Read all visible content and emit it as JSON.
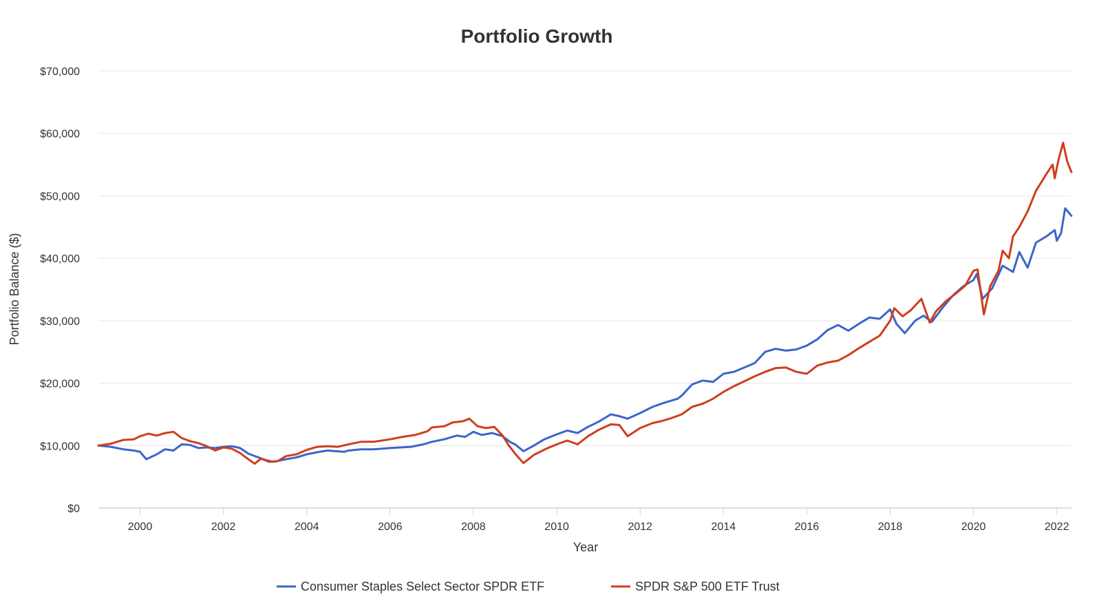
{
  "chart_data": {
    "type": "line",
    "title": "Portfolio Growth",
    "xlabel": "Year",
    "ylabel": "Portfolio Balance ($)",
    "xlim": [
      1999.0,
      2022.35
    ],
    "ylim": [
      0,
      70000
    ],
    "x_ticks": [
      2000,
      2002,
      2004,
      2006,
      2008,
      2010,
      2012,
      2014,
      2016,
      2018,
      2020,
      2022
    ],
    "x_tick_labels": [
      "2000",
      "2002",
      "2004",
      "2006",
      "2008",
      "2010",
      "2012",
      "2014",
      "2016",
      "2018",
      "2020",
      "2022"
    ],
    "y_ticks": [
      0,
      10000,
      20000,
      30000,
      40000,
      50000,
      60000,
      70000
    ],
    "y_tick_labels": [
      "$0",
      "$10,000",
      "$20,000",
      "$30,000",
      "$40,000",
      "$50,000",
      "$60,000",
      "$70,000"
    ],
    "grid": "horizontal",
    "legend_position": "bottom",
    "series": [
      {
        "name": "Consumer Staples Select Sector SPDR ETF",
        "color": "#3a65c9",
        "points": [
          [
            1999.0,
            10000
          ],
          [
            1999.3,
            9800
          ],
          [
            1999.6,
            9400
          ],
          [
            1999.85,
            9200
          ],
          [
            2000.0,
            9000
          ],
          [
            2000.15,
            7800
          ],
          [
            2000.4,
            8600
          ],
          [
            2000.6,
            9400
          ],
          [
            2000.8,
            9200
          ],
          [
            2001.0,
            10200
          ],
          [
            2001.2,
            10100
          ],
          [
            2001.4,
            9600
          ],
          [
            2001.6,
            9700
          ],
          [
            2001.8,
            9600
          ],
          [
            2002.0,
            9800
          ],
          [
            2002.2,
            9900
          ],
          [
            2002.4,
            9600
          ],
          [
            2002.6,
            8700
          ],
          [
            2002.8,
            8200
          ],
          [
            2003.0,
            7700
          ],
          [
            2003.2,
            7400
          ],
          [
            2003.5,
            7800
          ],
          [
            2003.75,
            8100
          ],
          [
            2004.0,
            8600
          ],
          [
            2004.3,
            9000
          ],
          [
            2004.5,
            9200
          ],
          [
            2004.7,
            9100
          ],
          [
            2004.9,
            9000
          ],
          [
            2005.0,
            9200
          ],
          [
            2005.3,
            9400
          ],
          [
            2005.6,
            9400
          ],
          [
            2006.0,
            9600
          ],
          [
            2006.5,
            9800
          ],
          [
            2006.8,
            10200
          ],
          [
            2007.0,
            10600
          ],
          [
            2007.3,
            11000
          ],
          [
            2007.6,
            11600
          ],
          [
            2007.8,
            11400
          ],
          [
            2008.0,
            12200
          ],
          [
            2008.2,
            11700
          ],
          [
            2008.45,
            12000
          ],
          [
            2008.7,
            11500
          ],
          [
            2008.9,
            10500
          ],
          [
            2009.0,
            10200
          ],
          [
            2009.2,
            9100
          ],
          [
            2009.45,
            10000
          ],
          [
            2009.7,
            11000
          ],
          [
            2010.0,
            11800
          ],
          [
            2010.25,
            12400
          ],
          [
            2010.5,
            12000
          ],
          [
            2010.75,
            13000
          ],
          [
            2011.0,
            13800
          ],
          [
            2011.3,
            15000
          ],
          [
            2011.5,
            14700
          ],
          [
            2011.7,
            14300
          ],
          [
            2012.0,
            15200
          ],
          [
            2012.3,
            16200
          ],
          [
            2012.6,
            16900
          ],
          [
            2012.9,
            17500
          ],
          [
            2013.0,
            18000
          ],
          [
            2013.25,
            19800
          ],
          [
            2013.5,
            20400
          ],
          [
            2013.75,
            20200
          ],
          [
            2014.0,
            21500
          ],
          [
            2014.25,
            21800
          ],
          [
            2014.5,
            22500
          ],
          [
            2014.75,
            23200
          ],
          [
            2015.0,
            25000
          ],
          [
            2015.25,
            25500
          ],
          [
            2015.5,
            25200
          ],
          [
            2015.75,
            25400
          ],
          [
            2016.0,
            26000
          ],
          [
            2016.25,
            27000
          ],
          [
            2016.5,
            28500
          ],
          [
            2016.75,
            29300
          ],
          [
            2017.0,
            28400
          ],
          [
            2017.25,
            29500
          ],
          [
            2017.5,
            30500
          ],
          [
            2017.75,
            30300
          ],
          [
            2018.0,
            31800
          ],
          [
            2018.15,
            29500
          ],
          [
            2018.35,
            28000
          ],
          [
            2018.6,
            30000
          ],
          [
            2018.8,
            30800
          ],
          [
            2019.0,
            29800
          ],
          [
            2019.25,
            32000
          ],
          [
            2019.5,
            34000
          ],
          [
            2019.75,
            35500
          ],
          [
            2020.0,
            36500
          ],
          [
            2020.08,
            37500
          ],
          [
            2020.22,
            33500
          ],
          [
            2020.45,
            35200
          ],
          [
            2020.7,
            38800
          ],
          [
            2020.95,
            37800
          ],
          [
            2021.1,
            41000
          ],
          [
            2021.3,
            38500
          ],
          [
            2021.5,
            42500
          ],
          [
            2021.75,
            43500
          ],
          [
            2021.95,
            44500
          ],
          [
            2022.0,
            42800
          ],
          [
            2022.1,
            44000
          ],
          [
            2022.2,
            48000
          ],
          [
            2022.35,
            46800
          ]
        ]
      },
      {
        "name": "SPDR S&P 500 ETF Trust",
        "color": "#cf3d1c",
        "points": [
          [
            1999.0,
            10000
          ],
          [
            1999.3,
            10300
          ],
          [
            1999.6,
            10900
          ],
          [
            1999.85,
            11000
          ],
          [
            2000.0,
            11500
          ],
          [
            2000.2,
            11900
          ],
          [
            2000.4,
            11600
          ],
          [
            2000.6,
            12000
          ],
          [
            2000.8,
            12200
          ],
          [
            2001.0,
            11200
          ],
          [
            2001.2,
            10700
          ],
          [
            2001.4,
            10400
          ],
          [
            2001.6,
            9900
          ],
          [
            2001.8,
            9200
          ],
          [
            2002.0,
            9700
          ],
          [
            2002.2,
            9500
          ],
          [
            2002.4,
            8800
          ],
          [
            2002.6,
            7800
          ],
          [
            2002.75,
            7100
          ],
          [
            2002.9,
            7900
          ],
          [
            2003.1,
            7400
          ],
          [
            2003.3,
            7500
          ],
          [
            2003.5,
            8300
          ],
          [
            2003.75,
            8600
          ],
          [
            2004.0,
            9300
          ],
          [
            2004.25,
            9800
          ],
          [
            2004.5,
            9900
          ],
          [
            2004.75,
            9800
          ],
          [
            2005.0,
            10200
          ],
          [
            2005.3,
            10600
          ],
          [
            2005.6,
            10600
          ],
          [
            2005.9,
            10900
          ],
          [
            2006.0,
            11000
          ],
          [
            2006.3,
            11400
          ],
          [
            2006.6,
            11700
          ],
          [
            2006.9,
            12300
          ],
          [
            2007.0,
            12900
          ],
          [
            2007.3,
            13100
          ],
          [
            2007.5,
            13700
          ],
          [
            2007.75,
            13900
          ],
          [
            2007.9,
            14300
          ],
          [
            2008.1,
            13100
          ],
          [
            2008.3,
            12800
          ],
          [
            2008.5,
            13000
          ],
          [
            2008.7,
            11600
          ],
          [
            2008.85,
            10000
          ],
          [
            2009.0,
            8700
          ],
          [
            2009.2,
            7200
          ],
          [
            2009.45,
            8500
          ],
          [
            2009.75,
            9500
          ],
          [
            2010.0,
            10200
          ],
          [
            2010.25,
            10800
          ],
          [
            2010.5,
            10200
          ],
          [
            2010.75,
            11500
          ],
          [
            2011.0,
            12500
          ],
          [
            2011.3,
            13400
          ],
          [
            2011.5,
            13300
          ],
          [
            2011.7,
            11500
          ],
          [
            2012.0,
            12800
          ],
          [
            2012.3,
            13600
          ],
          [
            2012.5,
            13900
          ],
          [
            2012.75,
            14400
          ],
          [
            2013.0,
            15000
          ],
          [
            2013.25,
            16200
          ],
          [
            2013.5,
            16700
          ],
          [
            2013.75,
            17500
          ],
          [
            2014.0,
            18600
          ],
          [
            2014.25,
            19500
          ],
          [
            2014.5,
            20300
          ],
          [
            2014.75,
            21100
          ],
          [
            2015.0,
            21800
          ],
          [
            2015.25,
            22400
          ],
          [
            2015.5,
            22500
          ],
          [
            2015.75,
            21800
          ],
          [
            2016.0,
            21500
          ],
          [
            2016.25,
            22800
          ],
          [
            2016.5,
            23300
          ],
          [
            2016.75,
            23600
          ],
          [
            2017.0,
            24500
          ],
          [
            2017.25,
            25600
          ],
          [
            2017.5,
            26600
          ],
          [
            2017.75,
            27600
          ],
          [
            2018.0,
            30000
          ],
          [
            2018.1,
            32000
          ],
          [
            2018.3,
            30700
          ],
          [
            2018.5,
            31700
          ],
          [
            2018.75,
            33500
          ],
          [
            2018.95,
            29700
          ],
          [
            2019.1,
            31500
          ],
          [
            2019.35,
            33200
          ],
          [
            2019.55,
            34200
          ],
          [
            2019.8,
            35600
          ],
          [
            2020.0,
            38000
          ],
          [
            2020.1,
            38200
          ],
          [
            2020.25,
            31000
          ],
          [
            2020.4,
            35500
          ],
          [
            2020.6,
            38000
          ],
          [
            2020.7,
            41200
          ],
          [
            2020.85,
            40000
          ],
          [
            2020.95,
            43500
          ],
          [
            2021.1,
            45000
          ],
          [
            2021.3,
            47500
          ],
          [
            2021.5,
            50800
          ],
          [
            2021.75,
            53500
          ],
          [
            2021.9,
            55000
          ],
          [
            2021.95,
            52800
          ],
          [
            2022.0,
            54500
          ],
          [
            2022.05,
            56000
          ],
          [
            2022.15,
            58500
          ],
          [
            2022.25,
            55500
          ],
          [
            2022.35,
            53800
          ]
        ]
      }
    ]
  }
}
